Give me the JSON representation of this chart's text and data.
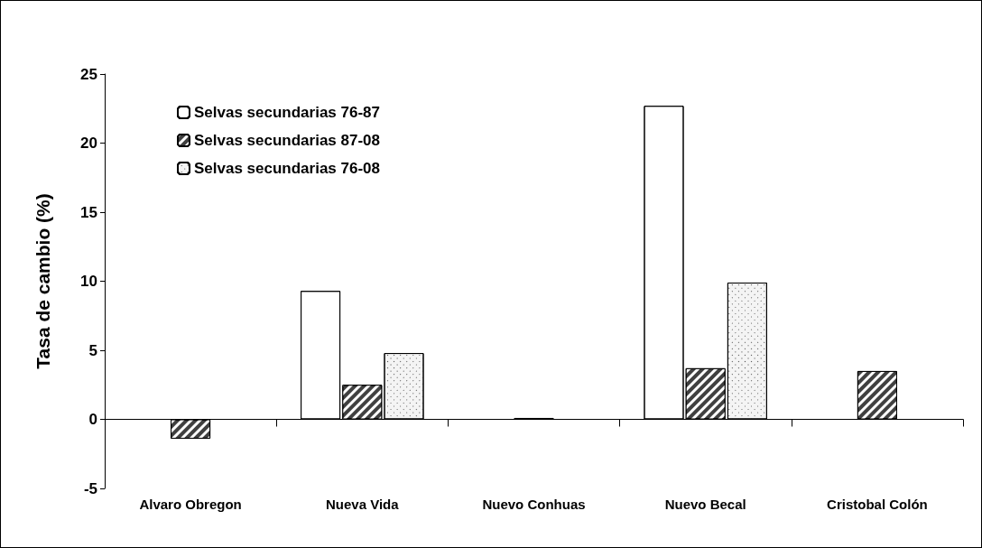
{
  "chart_data": {
    "type": "bar",
    "ylabel": "Tasa de cambio (%)",
    "categories": [
      "Alvaro Obregon",
      "Nueva Vida",
      "Nuevo Conhuas",
      "Nuevo Becal",
      "Cristobal Colón"
    ],
    "series": [
      {
        "name": "Selvas secundarias 76-87",
        "color": "#ffffff",
        "values": [
          null,
          9.3,
          null,
          22.7,
          null
        ]
      },
      {
        "name": "Selvas secundarias 87-08",
        "color": "#404040",
        "values": [
          -1.4,
          2.5,
          0.1,
          3.7,
          3.5
        ]
      },
      {
        "name": "Selvas secundarias 76-08",
        "color": "#f4f4f4",
        "values": [
          null,
          4.8,
          null,
          9.9,
          null
        ]
      }
    ],
    "ylim": [
      -5,
      25
    ],
    "yticks": [
      -5,
      0,
      5,
      10,
      15,
      20,
      25
    ],
    "legend": "top left"
  }
}
